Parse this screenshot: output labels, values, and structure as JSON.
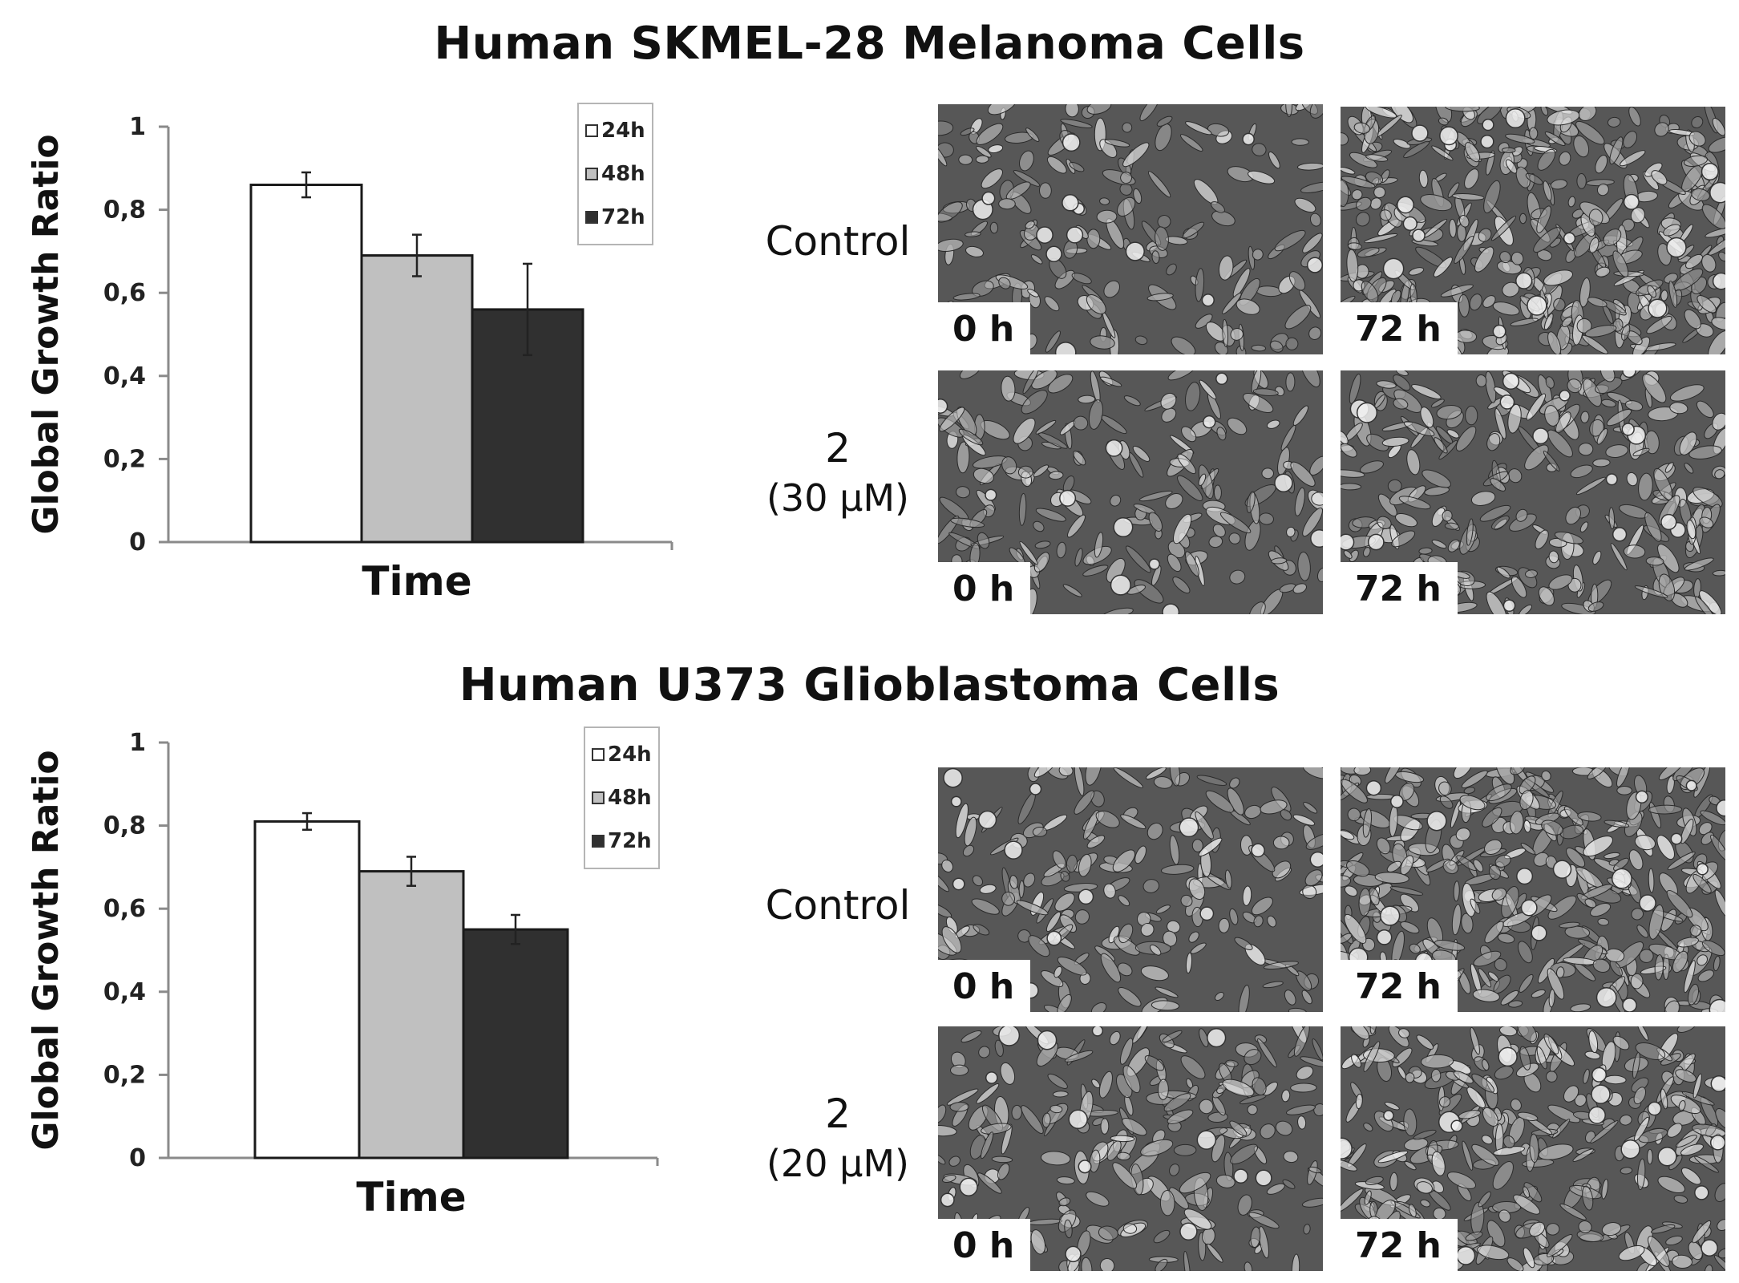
{
  "colors": {
    "s24": "#ffffff",
    "s48": "#c0c0c0",
    "s72": "#303030",
    "axis": "#8a8a8a",
    "image_bg": "#575757"
  },
  "panels": [
    {
      "title": "Human SKMEL-28 Melanoma Cells",
      "legend": [
        "24h",
        "48h",
        "72h"
      ],
      "row_labels": [
        {
          "main": "Control",
          "sub": ""
        },
        {
          "main": "2",
          "sub": "(30 µM)"
        }
      ],
      "images": [
        {
          "time": "0 h",
          "density": 0.35
        },
        {
          "time": "72 h",
          "density": 0.95
        },
        {
          "time": "0 h",
          "density": 0.38
        },
        {
          "time": "72 h",
          "density": 0.62
        }
      ]
    },
    {
      "title": "Human U373 Glioblastoma Cells",
      "legend": [
        "24h",
        "48h",
        "72h"
      ],
      "row_labels": [
        {
          "main": "Control",
          "sub": ""
        },
        {
          "main": "2",
          "sub": "(20 µM)"
        }
      ],
      "images": [
        {
          "time": "0 h",
          "density": 0.38
        },
        {
          "time": "72 h",
          "density": 0.9
        },
        {
          "time": "0 h",
          "density": 0.45
        },
        {
          "time": "72 h",
          "density": 0.75
        }
      ]
    }
  ],
  "chart_data": [
    {
      "type": "bar",
      "title": "Human SKMEL-28 Melanoma Cells",
      "xlabel": "Time",
      "ylabel": "Global Growth Ratio",
      "ylim": [
        0,
        1
      ],
      "yticks": [
        "0",
        "0,2",
        "0,4",
        "0,6",
        "0,8",
        "1"
      ],
      "legend_position": "top-right",
      "series": [
        {
          "name": "24h",
          "value": 0.86,
          "error": 0.03
        },
        {
          "name": "48h",
          "value": 0.69,
          "error": 0.05
        },
        {
          "name": "72h",
          "value": 0.56,
          "error": 0.11
        }
      ]
    },
    {
      "type": "bar",
      "title": "Human U373 Glioblastoma Cells",
      "xlabel": "Time",
      "ylabel": "Global Growth Ratio",
      "ylim": [
        0,
        1
      ],
      "yticks": [
        "0",
        "0,2",
        "0,4",
        "0,6",
        "0,8",
        "1"
      ],
      "legend_position": "top-right",
      "series": [
        {
          "name": "24h",
          "value": 0.81,
          "error": 0.02
        },
        {
          "name": "48h",
          "value": 0.69,
          "error": 0.035
        },
        {
          "name": "72h",
          "value": 0.55,
          "error": 0.035
        }
      ]
    }
  ]
}
